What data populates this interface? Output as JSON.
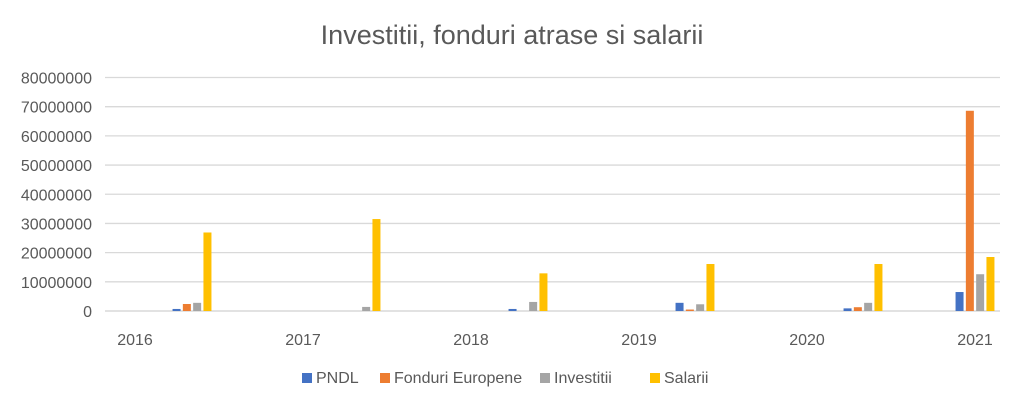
{
  "chart_data": {
    "type": "bar",
    "title": "Investitii, fonduri atrase si salarii",
    "categories": [
      "2016",
      "2017",
      "2018",
      "2019",
      "2020",
      "2021"
    ],
    "ylim": [
      0,
      80000000
    ],
    "yticks": [
      "0",
      "10000000",
      "20000000",
      "30000000",
      "40000000",
      "50000000",
      "60000000",
      "70000000",
      "80000000"
    ],
    "grid": true,
    "legend": "bottom",
    "series": [
      {
        "name": "PNDL",
        "color": "#4472C4",
        "values": [
          700000,
          0,
          700000,
          2800000,
          900000,
          6500000
        ]
      },
      {
        "name": "Fonduri Europene",
        "color": "#ED7D31",
        "values": [
          2400000,
          0,
          0,
          500000,
          1300000,
          68600000
        ]
      },
      {
        "name": "Investitii",
        "color": "#A5A5A5",
        "values": [
          2800000,
          1400000,
          3100000,
          2300000,
          2800000,
          12600000
        ]
      },
      {
        "name": "Salarii",
        "color": "#FFC000",
        "values": [
          26900000,
          31500000,
          12900000,
          16100000,
          16100000,
          18500000
        ]
      }
    ]
  }
}
